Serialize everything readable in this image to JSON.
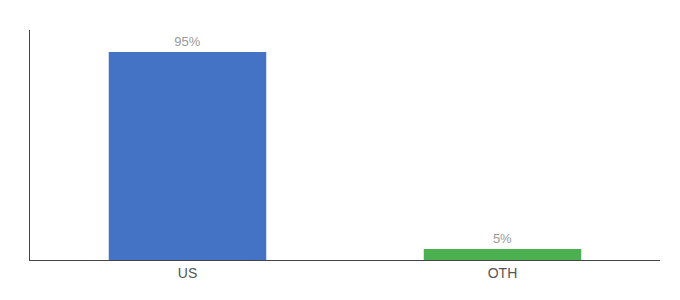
{
  "chart_data": {
    "type": "bar",
    "categories": [
      "US",
      "OTH"
    ],
    "values": [
      95,
      5
    ],
    "value_labels": [
      "95%",
      "5%"
    ],
    "colors": [
      "#4472c4",
      "#4caf50"
    ],
    "ylim": [
      0,
      105
    ],
    "grid": false,
    "tick_labels": "x",
    "data_labels": true
  }
}
